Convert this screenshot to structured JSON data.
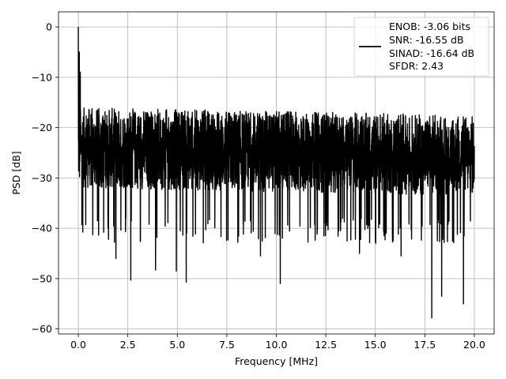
{
  "chart_data": {
    "type": "line",
    "xlabel": "Frequency [MHz]",
    "ylabel": "PSD [dB]",
    "xlim": [
      -1.0,
      21.0
    ],
    "ylim": [
      -61.0,
      3.0
    ],
    "x_ticks": [
      0.0,
      2.5,
      5.0,
      7.5,
      10.0,
      12.5,
      15.0,
      17.5,
      20.0
    ],
    "x_tick_labels": [
      "0.0",
      "2.5",
      "5.0",
      "7.5",
      "10.0",
      "12.5",
      "15.0",
      "17.5",
      "20.0"
    ],
    "y_ticks": [
      0,
      -10,
      -20,
      -30,
      -40,
      -50,
      -60
    ],
    "y_tick_labels": [
      "0",
      "−10",
      "−20",
      "−30",
      "−40",
      "−50",
      "−60"
    ],
    "grid": true,
    "legend_position": "top-right",
    "legend_lines": [
      "ENOB: -3.06 bits",
      "SNR: -16.55 dB",
      "SINAD: -16.64 dB",
      "SFDR: 2.43"
    ],
    "series": [
      {
        "color": "#000000",
        "noise_floor_db": -24,
        "envelope_upper_db": -15,
        "envelope_lower_db": -38,
        "x_range": [
          0.0,
          20.0
        ],
        "peaks": [
          {
            "x": 0.0,
            "y": 0.0
          },
          {
            "x": 0.05,
            "y": -5.0
          },
          {
            "x": 0.1,
            "y": -9.0
          }
        ],
        "dips": [
          {
            "x": 1.9,
            "y": -46.0
          },
          {
            "x": 2.65,
            "y": -50.3
          },
          {
            "x": 3.9,
            "y": -48.3
          },
          {
            "x": 4.95,
            "y": -48.5
          },
          {
            "x": 5.45,
            "y": -50.7
          },
          {
            "x": 10.2,
            "y": -51.0
          },
          {
            "x": 17.85,
            "y": -57.8
          },
          {
            "x": 18.35,
            "y": -53.5
          },
          {
            "x": 19.45,
            "y": -55.0
          },
          {
            "x": 9.2,
            "y": -45.5
          },
          {
            "x": 14.2,
            "y": -45.0
          },
          {
            "x": 16.3,
            "y": -45.5
          }
        ]
      }
    ]
  }
}
